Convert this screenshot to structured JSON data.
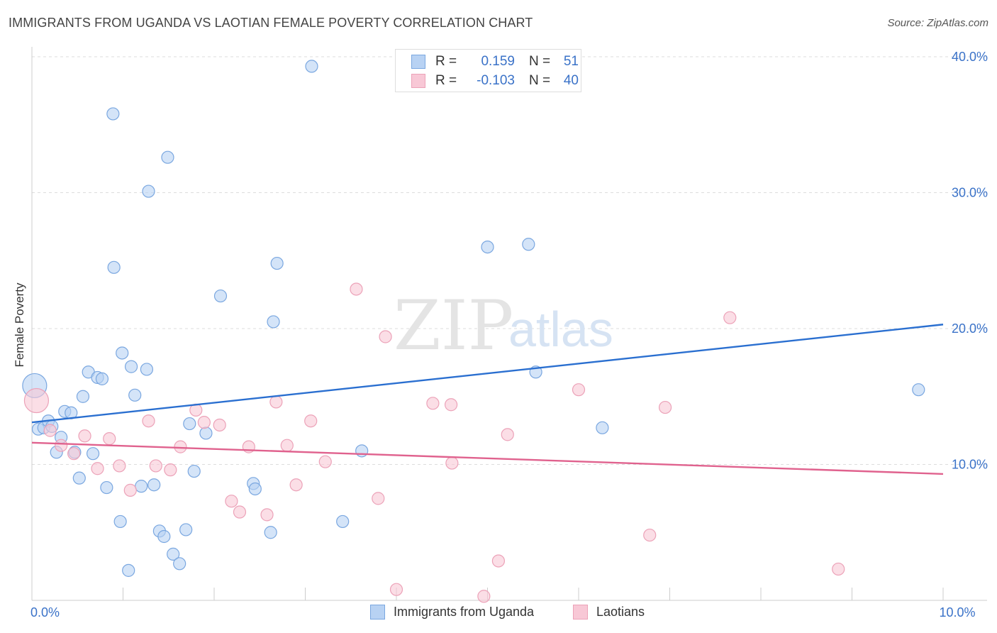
{
  "header": {
    "title": "IMMIGRANTS FROM UGANDA VS LAOTIAN FEMALE POVERTY CORRELATION CHART",
    "source": "Source: ZipAtlas.com"
  },
  "watermark": {
    "zip": "ZIP",
    "atlas": "atlas"
  },
  "legend_top": {
    "rows": [
      {
        "r_label": "R =",
        "r_value": "0.159",
        "n_label": "N =",
        "n_value": "51"
      },
      {
        "r_label": "R =",
        "r_value": "-0.103",
        "n_label": "N =",
        "n_value": "40"
      }
    ]
  },
  "legend_bottom": {
    "items": [
      {
        "label": "Immigrants from Uganda"
      },
      {
        "label": "Laotians"
      }
    ]
  },
  "colors": {
    "blue_fill": "#b8d2f3",
    "blue_stroke": "#7aa7e0",
    "blue_line": "#2a6fd0",
    "pink_fill": "#f8c8d6",
    "pink_stroke": "#eca2b8",
    "pink_line": "#e0628e",
    "tick_label": "#3a72c8",
    "grid": "#dddddd"
  },
  "chart_data": {
    "type": "scatter",
    "title": "IMMIGRANTS FROM UGANDA VS LAOTIAN FEMALE POVERTY CORRELATION CHART",
    "xlabel": "",
    "ylabel": "Female Poverty",
    "xlim": [
      0,
      10
    ],
    "ylim": [
      0,
      40
    ],
    "x_tick_labels": [
      {
        "value": 0,
        "label": "0.0%"
      },
      {
        "value": 10,
        "label": "10.0%"
      }
    ],
    "y_tick_labels": [
      {
        "value": 10,
        "label": "10.0%"
      },
      {
        "value": 20,
        "label": "20.0%"
      },
      {
        "value": 30,
        "label": "30.0%"
      },
      {
        "value": 40,
        "label": "40.0%"
      }
    ],
    "series": [
      {
        "name": "Immigrants from Uganda",
        "color": "blue",
        "r": 0.159,
        "n": 51,
        "trend": {
          "x": [
            0,
            10
          ],
          "y": [
            13.1,
            20.3
          ]
        },
        "points": [
          {
            "x": 0.03,
            "y": 15.8,
            "big": true
          },
          {
            "x": 0.07,
            "y": 12.6
          },
          {
            "x": 0.13,
            "y": 12.7
          },
          {
            "x": 0.18,
            "y": 13.2
          },
          {
            "x": 0.22,
            "y": 12.8
          },
          {
            "x": 0.27,
            "y": 10.9
          },
          {
            "x": 0.32,
            "y": 12.0
          },
          {
            "x": 0.36,
            "y": 13.9
          },
          {
            "x": 0.43,
            "y": 13.8
          },
          {
            "x": 0.47,
            "y": 10.9
          },
          {
            "x": 0.52,
            "y": 9.0
          },
          {
            "x": 0.56,
            "y": 15.0
          },
          {
            "x": 0.62,
            "y": 16.8
          },
          {
            "x": 0.67,
            "y": 10.8
          },
          {
            "x": 0.72,
            "y": 16.4
          },
          {
            "x": 0.77,
            "y": 16.3
          },
          {
            "x": 0.82,
            "y": 8.3
          },
          {
            "x": 0.89,
            "y": 35.8
          },
          {
            "x": 0.9,
            "y": 24.5
          },
          {
            "x": 0.97,
            "y": 5.8
          },
          {
            "x": 0.99,
            "y": 18.2
          },
          {
            "x": 1.06,
            "y": 2.2
          },
          {
            "x": 1.09,
            "y": 17.2
          },
          {
            "x": 1.13,
            "y": 15.1
          },
          {
            "x": 1.2,
            "y": 8.4
          },
          {
            "x": 1.26,
            "y": 17.0
          },
          {
            "x": 1.28,
            "y": 30.1
          },
          {
            "x": 1.34,
            "y": 8.5
          },
          {
            "x": 1.4,
            "y": 5.1
          },
          {
            "x": 1.45,
            "y": 4.7
          },
          {
            "x": 1.49,
            "y": 32.6
          },
          {
            "x": 1.55,
            "y": 3.4
          },
          {
            "x": 1.62,
            "y": 2.7
          },
          {
            "x": 1.69,
            "y": 5.2
          },
          {
            "x": 1.73,
            "y": 13.0
          },
          {
            "x": 1.78,
            "y": 9.5
          },
          {
            "x": 1.91,
            "y": 12.3
          },
          {
            "x": 2.07,
            "y": 22.4
          },
          {
            "x": 2.43,
            "y": 8.6
          },
          {
            "x": 2.45,
            "y": 8.2
          },
          {
            "x": 2.62,
            "y": 5.0
          },
          {
            "x": 2.65,
            "y": 20.5
          },
          {
            "x": 2.69,
            "y": 24.8
          },
          {
            "x": 3.07,
            "y": 39.3
          },
          {
            "x": 3.41,
            "y": 5.8
          },
          {
            "x": 3.62,
            "y": 11.0
          },
          {
            "x": 5.0,
            "y": 26.0
          },
          {
            "x": 5.45,
            "y": 26.2
          },
          {
            "x": 5.53,
            "y": 16.8
          },
          {
            "x": 6.26,
            "y": 12.7
          },
          {
            "x": 9.73,
            "y": 15.5
          }
        ]
      },
      {
        "name": "Laotians",
        "color": "pink",
        "r": -0.103,
        "n": 40,
        "trend": {
          "x": [
            0,
            10
          ],
          "y": [
            11.6,
            9.3
          ]
        },
        "points": [
          {
            "x": 0.05,
            "y": 14.7,
            "big": true
          },
          {
            "x": 0.2,
            "y": 12.5
          },
          {
            "x": 0.32,
            "y": 11.4
          },
          {
            "x": 0.46,
            "y": 10.8
          },
          {
            "x": 0.58,
            "y": 12.1
          },
          {
            "x": 0.72,
            "y": 9.7
          },
          {
            "x": 0.85,
            "y": 11.9
          },
          {
            "x": 0.96,
            "y": 9.9
          },
          {
            "x": 1.08,
            "y": 8.1
          },
          {
            "x": 1.28,
            "y": 13.2
          },
          {
            "x": 1.36,
            "y": 9.9
          },
          {
            "x": 1.52,
            "y": 9.6
          },
          {
            "x": 1.63,
            "y": 11.3
          },
          {
            "x": 1.8,
            "y": 14.0
          },
          {
            "x": 1.89,
            "y": 13.1
          },
          {
            "x": 2.06,
            "y": 12.9
          },
          {
            "x": 2.19,
            "y": 7.3
          },
          {
            "x": 2.28,
            "y": 6.5
          },
          {
            "x": 2.38,
            "y": 11.3
          },
          {
            "x": 2.58,
            "y": 6.3
          },
          {
            "x": 2.68,
            "y": 14.6
          },
          {
            "x": 2.8,
            "y": 11.4
          },
          {
            "x": 2.9,
            "y": 8.5
          },
          {
            "x": 3.06,
            "y": 13.2
          },
          {
            "x": 3.22,
            "y": 10.2
          },
          {
            "x": 3.56,
            "y": 22.9
          },
          {
            "x": 3.8,
            "y": 7.5
          },
          {
            "x": 3.88,
            "y": 19.4
          },
          {
            "x": 4.0,
            "y": 0.8
          },
          {
            "x": 4.4,
            "y": 14.5
          },
          {
            "x": 4.6,
            "y": 14.4
          },
          {
            "x": 4.61,
            "y": 10.1
          },
          {
            "x": 4.96,
            "y": 0.3
          },
          {
            "x": 5.12,
            "y": 2.9
          },
          {
            "x": 5.22,
            "y": 12.2
          },
          {
            "x": 6.0,
            "y": 15.5
          },
          {
            "x": 6.78,
            "y": 4.8
          },
          {
            "x": 6.95,
            "y": 14.2
          },
          {
            "x": 7.66,
            "y": 20.8
          },
          {
            "x": 8.85,
            "y": 2.3
          }
        ]
      }
    ]
  }
}
